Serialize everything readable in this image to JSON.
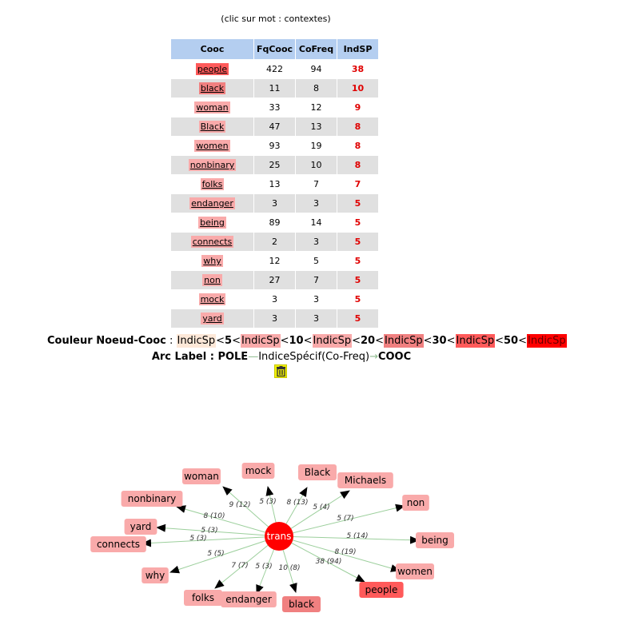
{
  "hint": "(clic sur mot : contextes)",
  "table": {
    "headers": [
      "Cooc",
      "FqCooc",
      "CoFreq",
      "IndSP"
    ],
    "rows": [
      {
        "word": "people",
        "fq": "422",
        "cofreq": "94",
        "ind": "38",
        "color": "#ff5a5a"
      },
      {
        "word": "black",
        "fq": "11",
        "cofreq": "8",
        "ind": "10",
        "color": "#f08080"
      },
      {
        "word": "woman",
        "fq": "33",
        "cofreq": "12",
        "ind": "9",
        "color": "#f9aaaa"
      },
      {
        "word": "Black",
        "fq": "47",
        "cofreq": "13",
        "ind": "8",
        "color": "#f9aaaa"
      },
      {
        "word": "women",
        "fq": "93",
        "cofreq": "19",
        "ind": "8",
        "color": "#f9aaaa"
      },
      {
        "word": "nonbinary",
        "fq": "25",
        "cofreq": "10",
        "ind": "8",
        "color": "#f9aaaa"
      },
      {
        "word": "folks",
        "fq": "13",
        "cofreq": "7",
        "ind": "7",
        "color": "#f9aaaa"
      },
      {
        "word": "endanger",
        "fq": "3",
        "cofreq": "3",
        "ind": "5",
        "color": "#f9aaaa"
      },
      {
        "word": "being",
        "fq": "89",
        "cofreq": "14",
        "ind": "5",
        "color": "#f9aaaa"
      },
      {
        "word": "connects",
        "fq": "2",
        "cofreq": "3",
        "ind": "5",
        "color": "#f9aaaa"
      },
      {
        "word": "why",
        "fq": "12",
        "cofreq": "5",
        "ind": "5",
        "color": "#f9aaaa"
      },
      {
        "word": "non",
        "fq": "27",
        "cofreq": "7",
        "ind": "5",
        "color": "#f9aaaa"
      },
      {
        "word": "mock",
        "fq": "3",
        "cofreq": "3",
        "ind": "5",
        "color": "#f9aaaa"
      },
      {
        "word": "yard",
        "fq": "3",
        "cofreq": "3",
        "ind": "5",
        "color": "#f9aaaa"
      }
    ]
  },
  "legend": {
    "label": "Couleur Noeud-Cooc",
    "colon": " : ",
    "ind": "IndicSp",
    "lt": "<",
    "thresholds": [
      "5",
      "10",
      "20",
      "30",
      "50"
    ],
    "swatches": [
      "#fde8d8",
      "#f9aaaa",
      "#f9aaaa",
      "#f08080",
      "#ff5a5a",
      "#ff0000"
    ]
  },
  "arc_legend": {
    "label": "Arc Label",
    "colon": " : ",
    "pole": "POLE",
    "dash": "—",
    "desc": "IndiceSpécif(Co-Freq)",
    "arrow": "→",
    "cooc": "COOC"
  },
  "icons": {
    "trash": "trash-icon"
  },
  "graph": {
    "center": {
      "label": "trans",
      "color": "#ff0000"
    },
    "nodes": [
      {
        "label": "woman",
        "edge": "9 (12)",
        "color": "#f9aaaa"
      },
      {
        "label": "mock",
        "edge": "5 (3)",
        "color": "#f9aaaa"
      },
      {
        "label": "Black",
        "edge": "8 (13)",
        "color": "#f9aaaa"
      },
      {
        "label": "Michaels",
        "edge": "5 (4)",
        "color": "#f9aaaa"
      },
      {
        "label": "nonbinary",
        "edge": "8 (10)",
        "color": "#f9aaaa"
      },
      {
        "label": "non",
        "edge": "5 (7)",
        "color": "#f9aaaa"
      },
      {
        "label": "yard",
        "edge": "5 (3)",
        "color": "#f9aaaa"
      },
      {
        "label": "connects",
        "edge": "5 (3)",
        "color": "#f9aaaa"
      },
      {
        "label": "being",
        "edge": "5 (14)",
        "color": "#f9aaaa"
      },
      {
        "label": "why",
        "edge": "5 (5)",
        "color": "#f9aaaa"
      },
      {
        "label": "women",
        "edge": "8 (19)",
        "color": "#f9aaaa"
      },
      {
        "label": "people",
        "edge": "38 (94)",
        "color": "#ff5a5a"
      },
      {
        "label": "folks",
        "edge": "7 (7)",
        "color": "#f9aaaa"
      },
      {
        "label": "endanger",
        "edge": "5 (3)",
        "color": "#f9aaaa"
      },
      {
        "label": "black",
        "edge": "10 (8)",
        "color": "#f08080"
      }
    ]
  }
}
